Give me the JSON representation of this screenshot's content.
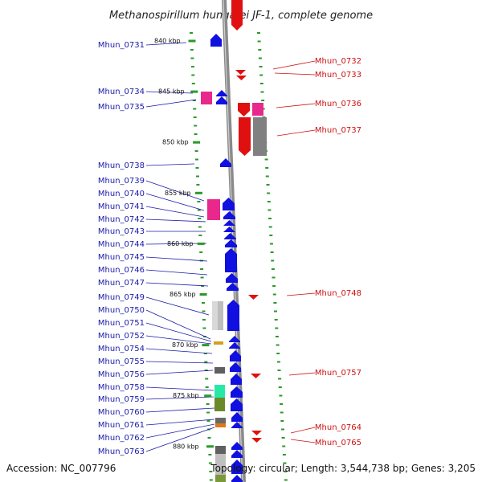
{
  "title": "Methanospirillum hungatei JF-1, complete genome",
  "footer": {
    "accession": "Accession: NC_007796",
    "topology": "Topology: circular; Length: 3,544,738 bp; Genes: 3,205"
  },
  "colors": {
    "forward": "#1010e0",
    "reverse": "#e01010",
    "pink": "#e8288c",
    "gray": "#808080",
    "tick": "#2a9a2a",
    "backbone": "#8a8a8a"
  },
  "kbp_marks": [
    {
      "label": "840 kbp",
      "kbp": 840
    },
    {
      "label": "845 kbp",
      "kbp": 845
    },
    {
      "label": "850 kbp",
      "kbp": 850
    },
    {
      "label": "855 kbp",
      "kbp": 855
    },
    {
      "label": "860 kbp",
      "kbp": 860
    },
    {
      "label": "865 kbp",
      "kbp": 865
    },
    {
      "label": "870 kbp",
      "kbp": 870
    },
    {
      "label": "875 kbp",
      "kbp": 875
    },
    {
      "label": "880 kbp",
      "kbp": 880
    }
  ],
  "left_genes": [
    "Mhun_0731",
    "Mhun_0734",
    "Mhun_0735",
    "Mhun_0738",
    "Mhun_0739",
    "Mhun_0740",
    "Mhun_0741",
    "Mhun_0742",
    "Mhun_0743",
    "Mhun_0744",
    "Mhun_0745",
    "Mhun_0746",
    "Mhun_0747",
    "Mhun_0749",
    "Mhun_0750",
    "Mhun_0751",
    "Mhun_0752",
    "Mhun_0754",
    "Mhun_0755",
    "Mhun_0756",
    "Mhun_0758",
    "Mhun_0759",
    "Mhun_0760",
    "Mhun_0761",
    "Mhun_0762",
    "Mhun_0763"
  ],
  "right_genes": [
    "Mhun_0732",
    "Mhun_0733",
    "Mhun_0736",
    "Mhun_0737",
    "Mhun_0748",
    "Mhun_0757",
    "Mhun_0764",
    "Mhun_0765"
  ]
}
